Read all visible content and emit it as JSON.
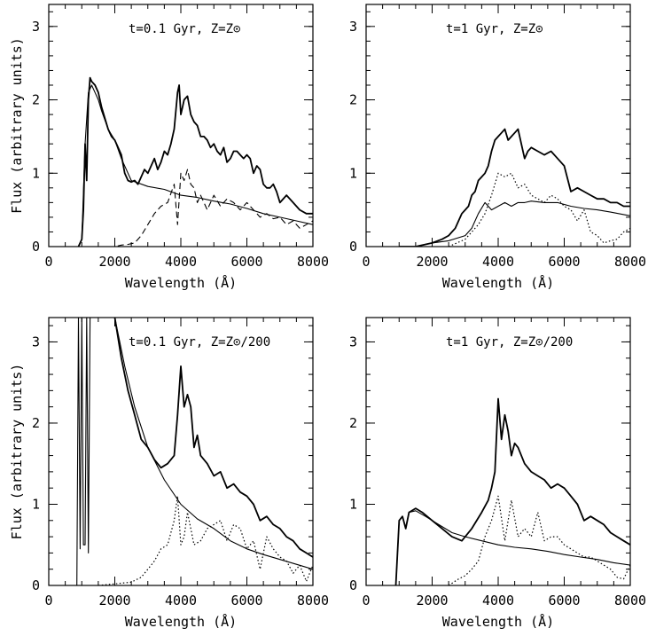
{
  "chart_data": [
    {
      "type": "line",
      "panel_label": "t=0.1 Gyr, Z=Z⊙",
      "xlabel": "Wavelength (Å)",
      "ylabel": "Flux (arbitrary units)",
      "xlim": [
        0,
        8000
      ],
      "ylim": [
        0,
        3.3
      ],
      "xticks": [
        "0",
        "2000",
        "4000",
        "6000",
        "8000"
      ],
      "yticks": [
        "0",
        "1",
        "2",
        "3"
      ],
      "series": [
        {
          "style": "solid-thick",
          "x": [
            900,
            1000,
            1050,
            1100,
            1150,
            1200,
            1250,
            1300,
            1400,
            1500,
            1600,
            1700,
            1800,
            1900,
            2000,
            2100,
            2200,
            2300,
            2400,
            2500,
            2600,
            2700,
            2800,
            2900,
            3000,
            3100,
            3200,
            3300,
            3400,
            3500,
            3600,
            3700,
            3800,
            3900,
            3950,
            4000,
            4050,
            4100,
            4200,
            4300,
            4400,
            4500,
            4600,
            4700,
            4800,
            4900,
            5000,
            5100,
            5200,
            5300,
            5400,
            5500,
            5600,
            5700,
            5800,
            5900,
            6000,
            6100,
            6200,
            6300,
            6400,
            6500,
            6600,
            6700,
            6800,
            6900,
            7000,
            7200,
            7400,
            7600,
            7800,
            8000
          ],
          "y": [
            0,
            0.1,
            0.5,
            1.4,
            0.9,
            2.0,
            2.3,
            2.25,
            2.2,
            2.1,
            1.9,
            1.75,
            1.6,
            1.5,
            1.45,
            1.35,
            1.25,
            1.0,
            0.9,
            0.88,
            0.9,
            0.85,
            0.95,
            1.05,
            1.0,
            1.1,
            1.2,
            1.05,
            1.15,
            1.3,
            1.25,
            1.4,
            1.6,
            2.1,
            2.2,
            1.8,
            1.9,
            2.0,
            2.05,
            1.8,
            1.7,
            1.65,
            1.5,
            1.5,
            1.45,
            1.35,
            1.4,
            1.3,
            1.25,
            1.35,
            1.15,
            1.2,
            1.3,
            1.3,
            1.25,
            1.2,
            1.25,
            1.2,
            1.0,
            1.1,
            1.05,
            0.85,
            0.8,
            0.8,
            0.85,
            0.75,
            0.6,
            0.7,
            0.6,
            0.5,
            0.45,
            0.45
          ]
        },
        {
          "style": "solid",
          "x": [
            900,
            1000,
            1100,
            1200,
            1300,
            1400,
            1500,
            1600,
            1800,
            2000,
            2200,
            2500,
            3000,
            3500,
            4000,
            4500,
            5000,
            5500,
            6000,
            6500,
            7000,
            7500,
            8000
          ],
          "y": [
            0,
            0.1,
            1.4,
            2.1,
            2.2,
            2.1,
            2.0,
            1.85,
            1.6,
            1.45,
            1.2,
            0.9,
            0.82,
            0.78,
            0.7,
            0.67,
            0.62,
            0.58,
            0.52,
            0.45,
            0.4,
            0.35,
            0.3
          ]
        },
        {
          "style": "dashed",
          "x": [
            1500,
            2000,
            2200,
            2400,
            2600,
            2800,
            3000,
            3200,
            3400,
            3600,
            3800,
            3900,
            4000,
            4100,
            4200,
            4300,
            4400,
            4500,
            4600,
            4800,
            5000,
            5200,
            5400,
            5600,
            5800,
            6000,
            6200,
            6400,
            6600,
            6800,
            7000,
            7200,
            7400,
            7600,
            7800,
            8000
          ],
          "y": [
            0,
            0,
            0.02,
            0.03,
            0.05,
            0.15,
            0.3,
            0.45,
            0.55,
            0.6,
            0.85,
            0.3,
            1.0,
            0.9,
            1.05,
            0.85,
            0.8,
            0.6,
            0.7,
            0.5,
            0.7,
            0.55,
            0.65,
            0.6,
            0.5,
            0.6,
            0.5,
            0.4,
            0.45,
            0.38,
            0.4,
            0.3,
            0.35,
            0.25,
            0.3,
            0.35
          ]
        }
      ]
    },
    {
      "type": "line",
      "panel_label": "t=1 Gyr, Z=Z⊙",
      "xlabel": "Wavelength (Å)",
      "ylabel": "",
      "xlim": [
        0,
        8000
      ],
      "ylim": [
        0,
        3.3
      ],
      "xticks": [
        "0",
        "2000",
        "4000",
        "6000",
        "8000"
      ],
      "yticks": [
        "0",
        "1",
        "2",
        "3"
      ],
      "series": [
        {
          "style": "solid-thick",
          "x": [
            1000,
            1500,
            2000,
            2300,
            2500,
            2700,
            2800,
            2900,
            3000,
            3100,
            3200,
            3300,
            3400,
            3500,
            3600,
            3700,
            3800,
            3900,
            4000,
            4100,
            4200,
            4300,
            4400,
            4500,
            4600,
            4700,
            4800,
            4900,
            5000,
            5200,
            5400,
            5600,
            5800,
            6000,
            6200,
            6400,
            6600,
            6800,
            7000,
            7200,
            7400,
            7600,
            7800,
            8000
          ],
          "y": [
            0,
            0,
            0.05,
            0.1,
            0.15,
            0.25,
            0.35,
            0.45,
            0.5,
            0.55,
            0.7,
            0.75,
            0.9,
            0.95,
            1.0,
            1.1,
            1.3,
            1.45,
            1.5,
            1.55,
            1.6,
            1.45,
            1.5,
            1.55,
            1.6,
            1.4,
            1.2,
            1.3,
            1.35,
            1.3,
            1.25,
            1.3,
            1.2,
            1.1,
            0.75,
            0.8,
            0.75,
            0.7,
            0.65,
            0.65,
            0.6,
            0.6,
            0.55,
            0.55
          ]
        },
        {
          "style": "solid",
          "x": [
            1000,
            1500,
            2000,
            2500,
            3000,
            3200,
            3400,
            3600,
            3800,
            4000,
            4200,
            4400,
            4600,
            4800,
            5000,
            5400,
            5800,
            6200,
            6600,
            7000,
            7400,
            8000
          ],
          "y": [
            0,
            0,
            0.05,
            0.08,
            0.15,
            0.25,
            0.45,
            0.6,
            0.5,
            0.55,
            0.6,
            0.55,
            0.6,
            0.6,
            0.62,
            0.6,
            0.6,
            0.55,
            0.52,
            0.5,
            0.47,
            0.42
          ]
        },
        {
          "style": "dotted",
          "x": [
            2500,
            3000,
            3200,
            3400,
            3600,
            3800,
            4000,
            4200,
            4400,
            4600,
            4800,
            5000,
            5200,
            5400,
            5600,
            5800,
            6000,
            6200,
            6400,
            6600,
            6800,
            7000,
            7200,
            7400,
            7600,
            7800,
            8000
          ],
          "y": [
            0,
            0.1,
            0.2,
            0.3,
            0.45,
            0.7,
            1.0,
            0.95,
            1.0,
            0.8,
            0.85,
            0.7,
            0.65,
            0.6,
            0.7,
            0.65,
            0.55,
            0.5,
            0.35,
            0.5,
            0.2,
            0.15,
            0.05,
            0.08,
            0.1,
            0.2,
            0.25
          ]
        }
      ]
    },
    {
      "type": "line",
      "panel_label": "t=0.1 Gyr, Z=Z⊙/200",
      "xlabel": "Wavelength (Å)",
      "ylabel": "Flux (arbitrary units)",
      "xlim": [
        0,
        8000
      ],
      "ylim": [
        0,
        3.3
      ],
      "xticks": [
        "0",
        "2000",
        "4000",
        "6000",
        "8000"
      ],
      "yticks": [
        "0",
        "1",
        "2",
        "3"
      ],
      "series": [
        {
          "style": "solid-thick",
          "x": [
            2000,
            2200,
            2400,
            2600,
            2800,
            3000,
            3200,
            3400,
            3600,
            3800,
            3900,
            4000,
            4100,
            4200,
            4300,
            4400,
            4500,
            4600,
            4800,
            5000,
            5200,
            5400,
            5600,
            5800,
            6000,
            6200,
            6400,
            6600,
            6800,
            7000,
            7200,
            7400,
            7600,
            7800,
            8000
          ],
          "y": [
            3.3,
            2.8,
            2.4,
            2.1,
            1.8,
            1.7,
            1.55,
            1.45,
            1.5,
            1.6,
            2.1,
            2.7,
            2.2,
            2.35,
            2.2,
            1.7,
            1.85,
            1.6,
            1.5,
            1.35,
            1.4,
            1.2,
            1.25,
            1.15,
            1.1,
            1.0,
            0.8,
            0.85,
            0.75,
            0.7,
            0.6,
            0.55,
            0.45,
            0.4,
            0.35
          ]
        },
        {
          "style": "solid",
          "x": [
            850,
            900,
            950,
            1000,
            1050,
            1100,
            1150,
            1200,
            1250,
            1300,
            1500,
            1700,
            2000,
            2300,
            2600,
            3000,
            3500,
            4000,
            4500,
            5000,
            5500,
            6000,
            6500,
            7000,
            7500,
            8000
          ],
          "y": [
            0,
            3.3,
            0.45,
            3.3,
            0.5,
            0.5,
            3.3,
            0.4,
            3.3,
            3.3,
            3.3,
            3.3,
            3.3,
            2.7,
            2.2,
            1.7,
            1.3,
            1.0,
            0.82,
            0.7,
            0.55,
            0.45,
            0.38,
            0.32,
            0.26,
            0.2
          ]
        },
        {
          "style": "dotted",
          "x": [
            1500,
            2000,
            2500,
            2800,
            3000,
            3200,
            3400,
            3600,
            3800,
            3900,
            4000,
            4100,
            4200,
            4400,
            4600,
            4800,
            5000,
            5200,
            5400,
            5600,
            5800,
            6000,
            6200,
            6400,
            6600,
            6800,
            7000,
            7200,
            7400,
            7600,
            7800,
            8000
          ],
          "y": [
            0,
            0.02,
            0.04,
            0.1,
            0.2,
            0.3,
            0.45,
            0.5,
            0.8,
            1.1,
            0.5,
            0.6,
            0.9,
            0.5,
            0.55,
            0.7,
            0.75,
            0.8,
            0.55,
            0.75,
            0.7,
            0.45,
            0.55,
            0.2,
            0.6,
            0.45,
            0.35,
            0.3,
            0.15,
            0.25,
            0.05,
            0.25
          ]
        }
      ]
    },
    {
      "type": "line",
      "panel_label": "t=1 Gyr, Z=Z⊙/200",
      "xlabel": "Wavelength (Å)",
      "ylabel": "",
      "xlim": [
        0,
        8000
      ],
      "ylim": [
        0,
        3.3
      ],
      "xticks": [
        "0",
        "2000",
        "4000",
        "6000",
        "8000"
      ],
      "yticks": [
        "0",
        "1",
        "2",
        "3"
      ],
      "series": [
        {
          "style": "solid-thick",
          "x": [
            900,
            1000,
            1100,
            1200,
            1300,
            1500,
            1700,
            2000,
            2300,
            2600,
            2900,
            3200,
            3500,
            3700,
            3800,
            3900,
            4000,
            4100,
            4200,
            4300,
            4400,
            4500,
            4600,
            4800,
            5000,
            5200,
            5400,
            5600,
            5800,
            6000,
            6200,
            6400,
            6600,
            6800,
            7000,
            7200,
            7400,
            7600,
            7800,
            8000
          ],
          "y": [
            0,
            0.8,
            0.85,
            0.7,
            0.9,
            0.95,
            0.9,
            0.8,
            0.7,
            0.6,
            0.55,
            0.7,
            0.9,
            1.05,
            1.2,
            1.4,
            2.3,
            1.8,
            2.1,
            1.9,
            1.6,
            1.75,
            1.7,
            1.5,
            1.4,
            1.35,
            1.3,
            1.2,
            1.25,
            1.2,
            1.1,
            1.0,
            0.8,
            0.85,
            0.8,
            0.75,
            0.65,
            0.6,
            0.55,
            0.5
          ]
        },
        {
          "style": "solid",
          "x": [
            900,
            1000,
            1100,
            1200,
            1300,
            1500,
            1800,
            2200,
            2600,
            3000,
            3500,
            4000,
            4500,
            5000,
            5500,
            6000,
            6500,
            7000,
            7500,
            8000
          ],
          "y": [
            0,
            0.8,
            0.85,
            0.7,
            0.9,
            0.92,
            0.85,
            0.75,
            0.65,
            0.6,
            0.55,
            0.5,
            0.47,
            0.45,
            0.42,
            0.38,
            0.35,
            0.32,
            0.28,
            0.25
          ]
        },
        {
          "style": "dotted",
          "x": [
            2500,
            2800,
            3000,
            3200,
            3400,
            3600,
            3800,
            4000,
            4200,
            4400,
            4600,
            4800,
            5000,
            5200,
            5400,
            5600,
            5800,
            6000,
            6200,
            6400,
            6600,
            6800,
            7000,
            7200,
            7400,
            7600,
            7800,
            8000
          ],
          "y": [
            0,
            0.08,
            0.12,
            0.2,
            0.3,
            0.6,
            0.8,
            1.1,
            0.55,
            1.05,
            0.6,
            0.7,
            0.6,
            0.9,
            0.55,
            0.6,
            0.6,
            0.5,
            0.45,
            0.4,
            0.35,
            0.35,
            0.3,
            0.25,
            0.2,
            0.1,
            0.08,
            0.25
          ]
        }
      ]
    }
  ]
}
